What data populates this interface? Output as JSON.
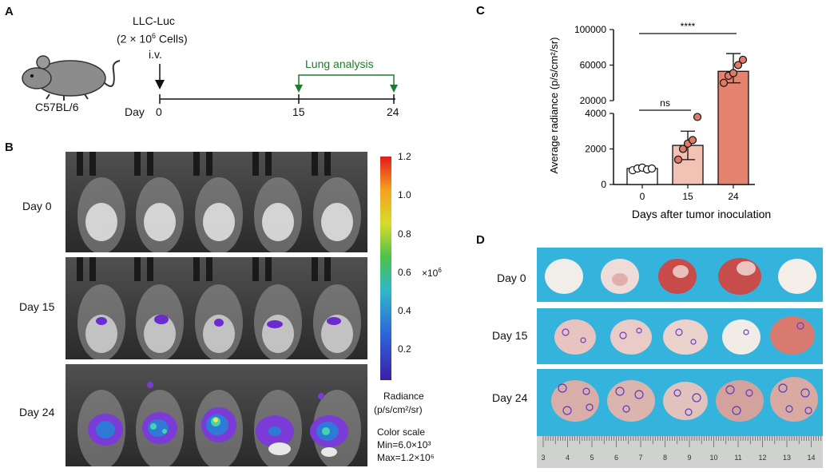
{
  "panelA": {
    "letter": "A",
    "cell_line": "LLC-Luc",
    "cell_count_prefix": "(2 × 10",
    "cell_count_exp": "6",
    "cell_count_suffix": " Cells)",
    "route": "i.v.",
    "mouse_strain": "C57BL/6",
    "day_label": "Day",
    "timepoints": [
      "0",
      "15",
      "24"
    ],
    "analysis_label": "Lung analysis",
    "analysis_color": "#1e7a2e"
  },
  "panelB": {
    "letter": "B",
    "rows": [
      {
        "label": "Day 0"
      },
      {
        "label": "Day 15"
      },
      {
        "label": "Day 24"
      }
    ],
    "colorbar_ticks": [
      "1.2",
      "1.0",
      "0.8",
      "0.6",
      "0.4",
      "0.2"
    ],
    "multiplier_prefix": "×10",
    "multiplier_exp": "6",
    "radiance_title": "Radiance",
    "radiance_units": "(p/s/cm²/sr)",
    "color_scale_title": "Color scale",
    "color_min": "Min=6.0×10³",
    "color_max": "Max=1.2×10⁶"
  },
  "panelD": {
    "letter": "D",
    "rows": [
      {
        "label": "Day 0"
      },
      {
        "label": "Day 15"
      },
      {
        "label": "Day 24"
      }
    ],
    "ruler_numbers": [
      "3",
      "4",
      "5",
      "6",
      "7",
      "8",
      "9",
      "10",
      "11",
      "12",
      "13",
      "14"
    ]
  },
  "chart_data": {
    "type": "bar",
    "panel_letter": "C",
    "categories": [
      "0",
      "15",
      "24"
    ],
    "values": [
      900,
      2200,
      53000
    ],
    "error_upper": [
      950,
      3000,
      73000
    ],
    "error_lower": [
      850,
      1400,
      40000
    ],
    "points": [
      [
        800,
        900,
        950,
        850,
        900
      ],
      [
        1400,
        2000,
        2300,
        2500,
        3800
      ],
      [
        40000,
        48000,
        51000,
        60000,
        66000
      ]
    ],
    "bar_colors": [
      "#ffffff",
      "#f2c2b4",
      "#e58371"
    ],
    "point_colors": [
      "#ffffff",
      "#e07a68",
      "#e07a68"
    ],
    "xlabel": "Days after tumor inoculation",
    "ylabel": "Average radiance (p/s/cm²/sr)",
    "lower_ticks": [
      "0",
      "2000",
      "4000"
    ],
    "upper_ticks": [
      "20000",
      "60000",
      "100000"
    ],
    "lower_ylim": [
      0,
      4000
    ],
    "upper_ylim": [
      20000,
      100000
    ],
    "broken_axis": true,
    "significance": [
      {
        "from": "0",
        "to": "15",
        "label": "ns"
      },
      {
        "from": "0",
        "to": "24",
        "label": "****"
      }
    ]
  }
}
